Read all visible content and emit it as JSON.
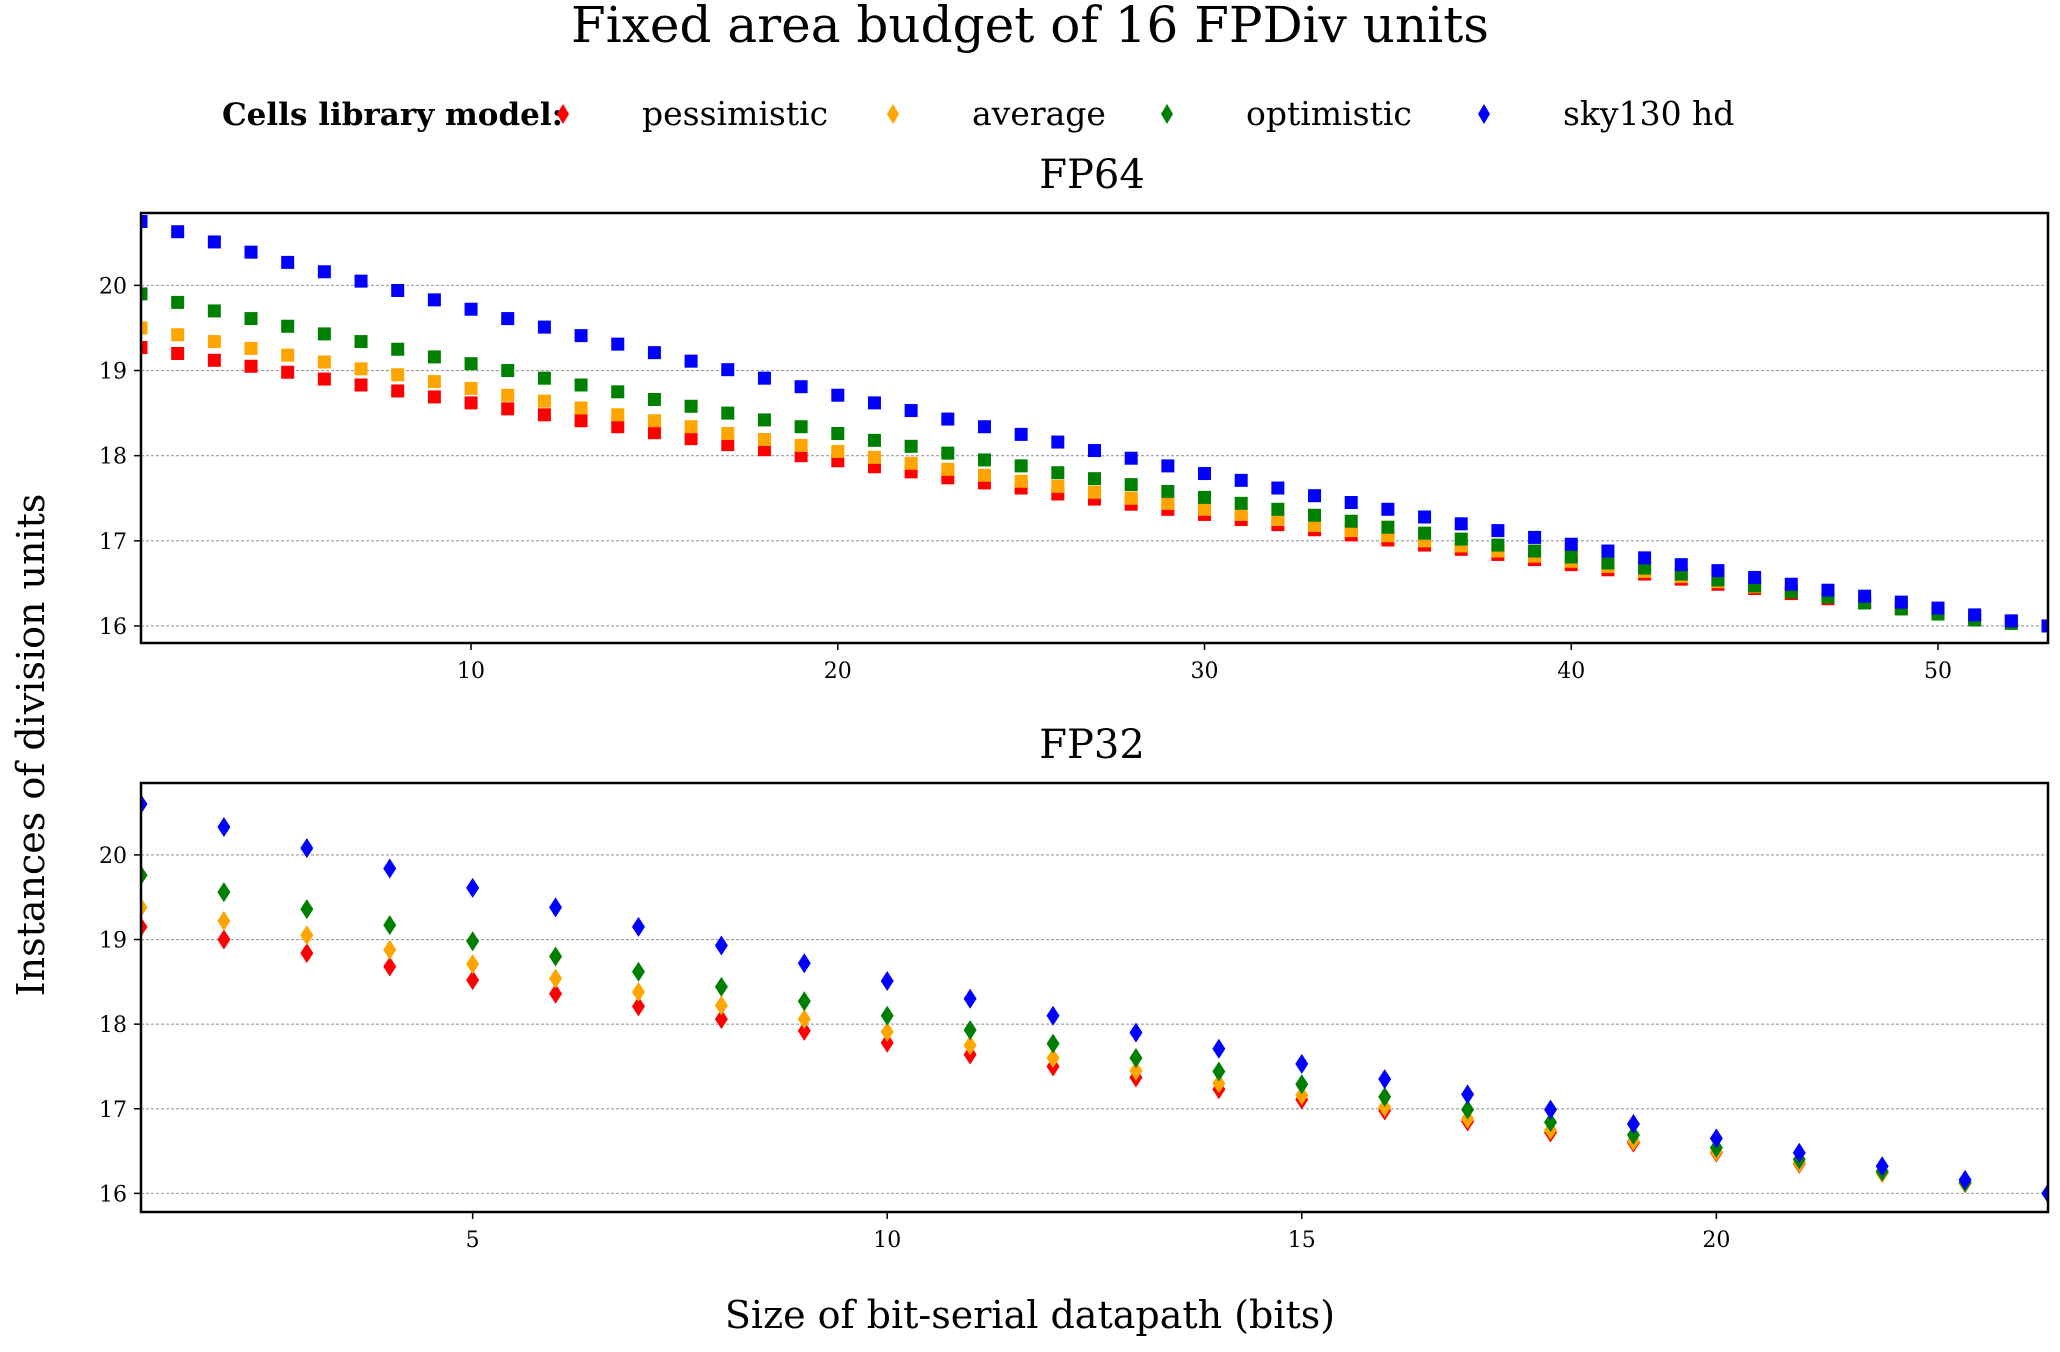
{
  "figure": {
    "title": "Fixed area budget of 16 FPDiv units",
    "legend_title": "Cells library model:",
    "ylabel": "Instances of division units",
    "xlabel": "Size of bit-serial datapath (bits)"
  },
  "chart_data": [
    {
      "type": "scatter",
      "title": "FP64",
      "marker": "square",
      "xlim": [
        1,
        53
      ],
      "ylim": [
        15.8,
        20.85
      ],
      "xticks": [
        10,
        20,
        30,
        40,
        50
      ],
      "yticks": [
        16,
        17,
        18,
        19,
        20
      ],
      "grid": "y",
      "legend_position": "top",
      "x": [
        1,
        2,
        3,
        4,
        5,
        6,
        7,
        8,
        9,
        10,
        11,
        12,
        13,
        14,
        15,
        16,
        17,
        18,
        19,
        20,
        21,
        22,
        23,
        24,
        25,
        26,
        27,
        28,
        29,
        30,
        31,
        32,
        33,
        34,
        35,
        36,
        37,
        38,
        39,
        40,
        41,
        42,
        43,
        44,
        45,
        46,
        47,
        48,
        49,
        50,
        51,
        52,
        53
      ],
      "series": [
        {
          "name": "pessimistic",
          "color": "#ff0000",
          "values": [
            19.27,
            19.2,
            19.12,
            19.05,
            18.98,
            18.9,
            18.83,
            18.76,
            18.69,
            18.62,
            18.55,
            18.48,
            18.41,
            18.34,
            18.27,
            18.2,
            18.13,
            18.07,
            18.0,
            17.94,
            17.87,
            17.81,
            17.74,
            17.68,
            17.62,
            17.55,
            17.49,
            17.43,
            17.37,
            17.31,
            17.25,
            17.19,
            17.13,
            17.07,
            17.01,
            16.95,
            16.9,
            16.84,
            16.78,
            16.72,
            16.66,
            16.61,
            16.55,
            16.49,
            16.44,
            16.38,
            16.32,
            16.27,
            16.21,
            16.16,
            16.11,
            16.05,
            16.0
          ]
        },
        {
          "name": "average",
          "color": "#ffa500",
          "values": [
            19.5,
            19.42,
            19.34,
            19.26,
            19.18,
            19.1,
            19.02,
            18.95,
            18.87,
            18.79,
            18.71,
            18.64,
            18.56,
            18.48,
            18.41,
            18.34,
            18.26,
            18.19,
            18.12,
            18.05,
            17.98,
            17.91,
            17.84,
            17.77,
            17.7,
            17.64,
            17.57,
            17.5,
            17.44,
            17.37,
            17.31,
            17.25,
            17.18,
            17.12,
            17.06,
            17.0,
            16.94,
            16.88,
            16.82,
            16.76,
            16.7,
            16.64,
            16.58,
            16.52,
            16.46,
            16.41,
            16.35,
            16.29,
            16.23,
            16.17,
            16.11,
            16.06,
            16.0
          ]
        },
        {
          "name": "optimistic",
          "color": "#008000",
          "values": [
            19.9,
            19.8,
            19.7,
            19.61,
            19.52,
            19.43,
            19.34,
            19.25,
            19.16,
            19.08,
            19.0,
            18.91,
            18.83,
            18.75,
            18.66,
            18.58,
            18.5,
            18.42,
            18.34,
            18.26,
            18.18,
            18.11,
            18.03,
            17.95,
            17.88,
            17.8,
            17.73,
            17.66,
            17.58,
            17.51,
            17.44,
            17.37,
            17.3,
            17.23,
            17.16,
            17.09,
            17.02,
            16.95,
            16.88,
            16.81,
            16.74,
            16.68,
            16.61,
            16.54,
            16.47,
            16.4,
            16.34,
            16.27,
            16.2,
            16.14,
            16.07,
            16.03,
            16.0
          ]
        },
        {
          "name": "sky130 hd",
          "color": "#0000ff",
          "values": [
            20.75,
            20.63,
            20.51,
            20.39,
            20.27,
            20.16,
            20.05,
            19.94,
            19.83,
            19.72,
            19.61,
            19.51,
            19.41,
            19.31,
            19.21,
            19.11,
            19.01,
            18.91,
            18.81,
            18.71,
            18.62,
            18.53,
            18.43,
            18.34,
            18.25,
            18.16,
            18.06,
            17.97,
            17.88,
            17.79,
            17.71,
            17.62,
            17.53,
            17.45,
            17.37,
            17.28,
            17.2,
            17.12,
            17.04,
            16.96,
            16.88,
            16.8,
            16.72,
            16.65,
            16.57,
            16.49,
            16.42,
            16.35,
            16.28,
            16.21,
            16.13,
            16.06,
            16.0
          ]
        }
      ]
    },
    {
      "type": "scatter",
      "title": "FP32",
      "marker": "diamond",
      "xlim": [
        1,
        24
      ],
      "ylim": [
        15.78,
        20.85
      ],
      "xticks": [
        5,
        10,
        15,
        20
      ],
      "yticks": [
        16,
        17,
        18,
        19,
        20
      ],
      "grid": "y",
      "x": [
        1,
        2,
        3,
        4,
        5,
        6,
        7,
        8,
        9,
        10,
        11,
        12,
        13,
        14,
        15,
        16,
        17,
        18,
        19,
        20,
        21,
        22,
        23,
        24
      ],
      "series": [
        {
          "name": "pessimistic",
          "color": "#ff0000",
          "values": [
            19.15,
            19.0,
            18.84,
            18.68,
            18.52,
            18.36,
            18.21,
            18.06,
            17.92,
            17.78,
            17.64,
            17.5,
            17.37,
            17.23,
            17.11,
            16.98,
            16.85,
            16.72,
            16.6,
            16.48,
            16.35,
            16.24,
            16.12,
            16.0
          ]
        },
        {
          "name": "average",
          "color": "#ffa500",
          "values": [
            19.38,
            19.22,
            19.05,
            18.88,
            18.71,
            18.54,
            18.38,
            18.22,
            18.06,
            17.91,
            17.75,
            17.6,
            17.45,
            17.3,
            17.16,
            17.02,
            16.88,
            16.75,
            16.62,
            16.49,
            16.36,
            16.24,
            16.12,
            16.0
          ]
        },
        {
          "name": "optimistic",
          "color": "#008000",
          "values": [
            19.76,
            19.56,
            19.36,
            19.17,
            18.98,
            18.8,
            18.62,
            18.44,
            18.27,
            18.1,
            17.93,
            17.77,
            17.6,
            17.44,
            17.29,
            17.14,
            16.99,
            16.84,
            16.69,
            16.54,
            16.4,
            16.26,
            16.13,
            16.0
          ]
        },
        {
          "name": "sky130 hd",
          "color": "#0000ff",
          "values": [
            20.6,
            20.33,
            20.08,
            19.84,
            19.61,
            19.38,
            19.15,
            18.93,
            18.72,
            18.51,
            18.3,
            18.1,
            17.9,
            17.71,
            17.53,
            17.35,
            17.17,
            16.99,
            16.82,
            16.65,
            16.48,
            16.32,
            16.16,
            16.0
          ]
        }
      ]
    }
  ]
}
